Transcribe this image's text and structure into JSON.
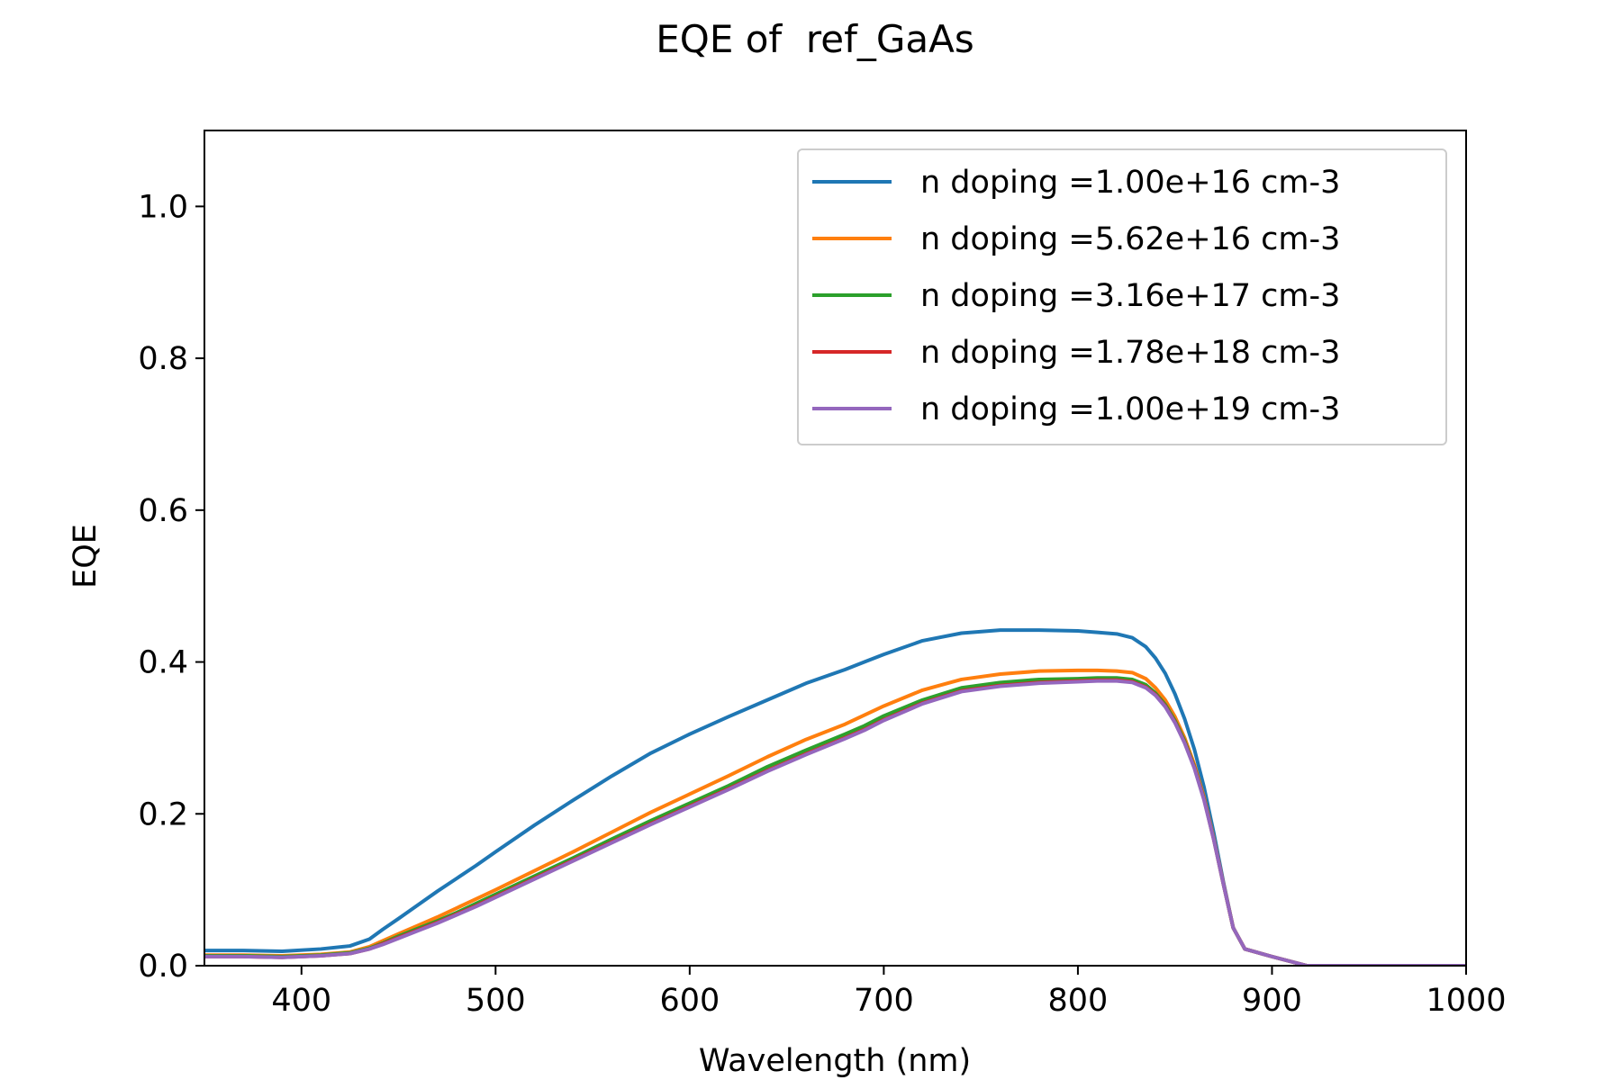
{
  "chart_data": {
    "type": "line",
    "title": "EQE of  ref_GaAs",
    "xlabel": "Wavelength (nm)",
    "ylabel": "EQE",
    "xlim": [
      350,
      1000
    ],
    "ylim": [
      0,
      1.1
    ],
    "xticks": [
      400,
      500,
      600,
      700,
      800,
      900,
      1000
    ],
    "xtick_labels": [
      "400",
      "500",
      "600",
      "700",
      "800",
      "900",
      "1000"
    ],
    "yticks": [
      0.0,
      0.2,
      0.4,
      0.6,
      0.8,
      1.0
    ],
    "ytick_labels": [
      "0.0",
      "0.2",
      "0.4",
      "0.6",
      "0.8",
      "1.0"
    ],
    "grid": false,
    "legend_position": "top-right",
    "series": [
      {
        "name": "n doping =1.00e+16 cm-3",
        "color": "#1f77b4",
        "x": [
          350,
          370,
          390,
          410,
          425,
          435,
          442,
          450,
          460,
          470,
          480,
          490,
          500,
          520,
          540,
          560,
          580,
          600,
          620,
          640,
          660,
          680,
          690,
          700,
          720,
          740,
          760,
          780,
          800,
          810,
          820,
          828,
          835,
          840,
          845,
          850,
          855,
          860,
          865,
          870,
          875,
          880,
          886,
          900,
          918,
          950,
          1000
        ],
        "y": [
          0.02,
          0.02,
          0.019,
          0.022,
          0.026,
          0.035,
          0.048,
          0.062,
          0.08,
          0.098,
          0.115,
          0.132,
          0.15,
          0.185,
          0.218,
          0.25,
          0.28,
          0.305,
          0.328,
          0.35,
          0.372,
          0.39,
          0.4,
          0.41,
          0.428,
          0.438,
          0.442,
          0.442,
          0.441,
          0.439,
          0.437,
          0.432,
          0.42,
          0.405,
          0.385,
          0.358,
          0.325,
          0.285,
          0.235,
          0.175,
          0.11,
          0.05,
          0.022,
          0.012,
          0.0,
          0.0,
          0.0
        ]
      },
      {
        "name": "n doping =5.62e+16 cm-3",
        "color": "#ff7f0e",
        "x": [
          350,
          370,
          390,
          410,
          425,
          435,
          442,
          450,
          460,
          470,
          480,
          490,
          500,
          520,
          540,
          560,
          580,
          600,
          620,
          640,
          660,
          680,
          690,
          700,
          720,
          740,
          760,
          780,
          800,
          810,
          820,
          828,
          835,
          840,
          845,
          850,
          855,
          860,
          865,
          870,
          875,
          880,
          886,
          900,
          918,
          950,
          1000
        ],
        "y": [
          0.014,
          0.014,
          0.013,
          0.015,
          0.018,
          0.025,
          0.033,
          0.042,
          0.053,
          0.064,
          0.076,
          0.088,
          0.1,
          0.125,
          0.15,
          0.176,
          0.202,
          0.226,
          0.25,
          0.275,
          0.298,
          0.318,
          0.33,
          0.342,
          0.363,
          0.377,
          0.384,
          0.388,
          0.389,
          0.389,
          0.388,
          0.386,
          0.378,
          0.366,
          0.35,
          0.328,
          0.3,
          0.265,
          0.222,
          0.168,
          0.108,
          0.05,
          0.022,
          0.012,
          0.0,
          0.0,
          0.0
        ]
      },
      {
        "name": "n doping =3.16e+17 cm-3",
        "color": "#2ca02c",
        "x": [
          350,
          370,
          390,
          410,
          425,
          435,
          442,
          450,
          460,
          470,
          480,
          490,
          500,
          520,
          540,
          560,
          580,
          600,
          620,
          640,
          660,
          680,
          690,
          700,
          720,
          740,
          760,
          780,
          800,
          810,
          820,
          828,
          835,
          840,
          845,
          850,
          855,
          860,
          865,
          870,
          875,
          880,
          886,
          900,
          918,
          950,
          1000
        ],
        "y": [
          0.013,
          0.013,
          0.012,
          0.014,
          0.017,
          0.023,
          0.03,
          0.039,
          0.049,
          0.059,
          0.07,
          0.082,
          0.094,
          0.118,
          0.142,
          0.167,
          0.191,
          0.214,
          0.237,
          0.262,
          0.284,
          0.305,
          0.316,
          0.329,
          0.35,
          0.366,
          0.373,
          0.377,
          0.378,
          0.379,
          0.379,
          0.377,
          0.37,
          0.359,
          0.344,
          0.323,
          0.296,
          0.262,
          0.22,
          0.167,
          0.107,
          0.05,
          0.022,
          0.012,
          0.0,
          0.0,
          0.0
        ]
      },
      {
        "name": "n doping =1.78e+18 cm-3",
        "color": "#d62728",
        "x": [
          350,
          370,
          390,
          410,
          425,
          435,
          442,
          450,
          460,
          470,
          480,
          490,
          500,
          520,
          540,
          560,
          580,
          600,
          620,
          640,
          660,
          680,
          690,
          700,
          720,
          740,
          760,
          780,
          800,
          810,
          820,
          828,
          835,
          840,
          845,
          850,
          855,
          860,
          865,
          870,
          875,
          880,
          886,
          900,
          918,
          950,
          1000
        ],
        "y": [
          0.012,
          0.012,
          0.011,
          0.013,
          0.016,
          0.022,
          0.029,
          0.037,
          0.047,
          0.057,
          0.068,
          0.079,
          0.091,
          0.115,
          0.139,
          0.163,
          0.187,
          0.21,
          0.233,
          0.257,
          0.279,
          0.3,
          0.311,
          0.324,
          0.346,
          0.362,
          0.369,
          0.373,
          0.375,
          0.376,
          0.376,
          0.374,
          0.367,
          0.357,
          0.342,
          0.321,
          0.294,
          0.261,
          0.219,
          0.166,
          0.107,
          0.05,
          0.022,
          0.012,
          0.0,
          0.0,
          0.0
        ]
      },
      {
        "name": "n doping =1.00e+19 cm-3",
        "color": "#9467bd",
        "x": [
          350,
          370,
          390,
          410,
          425,
          435,
          442,
          450,
          460,
          470,
          480,
          490,
          500,
          520,
          540,
          560,
          580,
          600,
          620,
          640,
          660,
          680,
          690,
          700,
          720,
          740,
          760,
          780,
          800,
          810,
          820,
          828,
          835,
          840,
          845,
          850,
          855,
          860,
          865,
          870,
          875,
          880,
          886,
          900,
          918,
          950,
          1000
        ],
        "y": [
          0.012,
          0.012,
          0.011,
          0.013,
          0.016,
          0.022,
          0.028,
          0.036,
          0.046,
          0.056,
          0.067,
          0.078,
          0.09,
          0.114,
          0.138,
          0.162,
          0.186,
          0.209,
          0.232,
          0.256,
          0.278,
          0.299,
          0.31,
          0.323,
          0.345,
          0.361,
          0.368,
          0.372,
          0.374,
          0.375,
          0.375,
          0.373,
          0.366,
          0.356,
          0.341,
          0.32,
          0.293,
          0.26,
          0.218,
          0.166,
          0.107,
          0.05,
          0.022,
          0.012,
          0.0,
          0.0,
          0.0
        ]
      }
    ]
  }
}
